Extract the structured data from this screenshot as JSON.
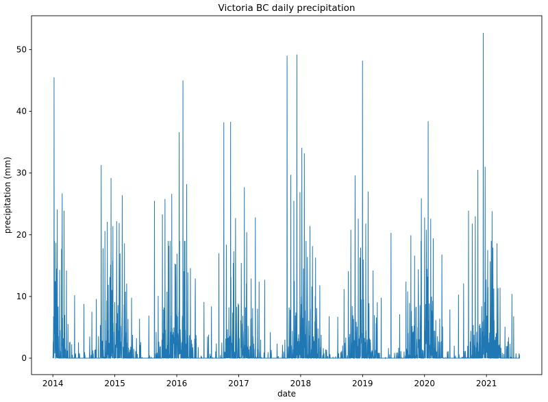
{
  "chart_data": {
    "type": "line",
    "title": "Victoria BC daily precipitation",
    "xlabel": "date",
    "ylabel": "precipitation (mm)",
    "line_color": "#1f77b4",
    "spine_color": "#000000",
    "background": "#ffffff",
    "legend": "none",
    "grid": false,
    "x_ticks": [
      2014,
      2015,
      2016,
      2017,
      2018,
      2019,
      2020,
      2021
    ],
    "y_ticks": [
      0,
      10,
      20,
      30,
      40,
      50
    ],
    "xlim": [
      2013.655,
      2021.894
    ],
    "ylim": [
      -2.66,
      55.48
    ],
    "series_start": 2014.0,
    "series_end": 2021.54,
    "peaks": [
      [
        2014.02,
        45.5
      ],
      [
        2014.05,
        18.7
      ],
      [
        2014.07,
        24.1
      ],
      [
        2014.11,
        14.3
      ],
      [
        2014.15,
        26.7
      ],
      [
        2014.18,
        23.9
      ],
      [
        2014.22,
        14.2
      ],
      [
        2014.35,
        10.2
      ],
      [
        2014.5,
        8.8
      ],
      [
        2014.63,
        7.5
      ],
      [
        2014.7,
        9.6
      ],
      [
        2014.78,
        31.3
      ],
      [
        2014.81,
        17.8
      ],
      [
        2014.84,
        20.6
      ],
      [
        2014.88,
        22.1
      ],
      [
        2014.94,
        29.2
      ],
      [
        2014.97,
        21.4
      ],
      [
        2015.03,
        22.2
      ],
      [
        2015.07,
        21.9
      ],
      [
        2015.12,
        26.4
      ],
      [
        2015.19,
        12.1
      ],
      [
        2015.27,
        9.8
      ],
      [
        2015.4,
        6.4
      ],
      [
        2015.55,
        6.9
      ],
      [
        2015.64,
        25.5
      ],
      [
        2015.7,
        10.1
      ],
      [
        2015.77,
        23.3
      ],
      [
        2015.81,
        25.8
      ],
      [
        2015.87,
        18.2
      ],
      [
        2015.92,
        26.6
      ],
      [
        2015.97,
        15.3
      ],
      [
        2016.04,
        36.6
      ],
      [
        2016.1,
        45.0
      ],
      [
        2016.16,
        28.2
      ],
      [
        2016.22,
        14.6
      ],
      [
        2016.3,
        12.9
      ],
      [
        2016.44,
        9.1
      ],
      [
        2016.56,
        8.4
      ],
      [
        2016.68,
        17.0
      ],
      [
        2016.76,
        38.2
      ],
      [
        2016.8,
        18.4
      ],
      [
        2016.87,
        38.3
      ],
      [
        2016.95,
        22.7
      ],
      [
        2017.09,
        27.7
      ],
      [
        2017.13,
        20.4
      ],
      [
        2017.2,
        12.9
      ],
      [
        2017.27,
        22.8
      ],
      [
        2017.33,
        12.4
      ],
      [
        2017.42,
        12.7
      ],
      [
        2017.51,
        4.2
      ],
      [
        2017.78,
        49.0
      ],
      [
        2017.84,
        29.7
      ],
      [
        2017.89,
        25.5
      ],
      [
        2017.94,
        49.2
      ],
      [
        2017.99,
        26.9
      ],
      [
        2018.02,
        34.1
      ],
      [
        2018.06,
        33.2
      ],
      [
        2018.11,
        16.4
      ],
      [
        2018.15,
        21.4
      ],
      [
        2018.24,
        16.3
      ],
      [
        2018.31,
        11.8
      ],
      [
        2018.46,
        6.8
      ],
      [
        2018.6,
        6.7
      ],
      [
        2018.7,
        11.2
      ],
      [
        2018.77,
        14.1
      ],
      [
        2018.81,
        20.8
      ],
      [
        2018.88,
        29.6
      ],
      [
        2018.93,
        22.6
      ],
      [
        2018.97,
        17.9
      ],
      [
        2019.0,
        48.2
      ],
      [
        2019.05,
        21.8
      ],
      [
        2019.09,
        27.0
      ],
      [
        2019.17,
        14.2
      ],
      [
        2019.3,
        9.8
      ],
      [
        2019.46,
        20.3
      ],
      [
        2019.6,
        7.1
      ],
      [
        2019.7,
        12.4
      ],
      [
        2019.78,
        19.9
      ],
      [
        2019.84,
        16.6
      ],
      [
        2019.9,
        14.4
      ],
      [
        2019.95,
        25.9
      ],
      [
        2020.0,
        22.8
      ],
      [
        2020.03,
        20.8
      ],
      [
        2020.06,
        38.4
      ],
      [
        2020.1,
        22.6
      ],
      [
        2020.14,
        19.4
      ],
      [
        2020.28,
        16.8
      ],
      [
        2020.41,
        7.9
      ],
      [
        2020.55,
        10.3
      ],
      [
        2020.63,
        12.1
      ],
      [
        2020.71,
        23.9
      ],
      [
        2020.77,
        21.8
      ],
      [
        2020.82,
        23.0
      ],
      [
        2020.86,
        30.5
      ],
      [
        2020.95,
        52.7
      ],
      [
        2020.98,
        31.0
      ],
      [
        2021.02,
        17.5
      ],
      [
        2021.06,
        15.7
      ],
      [
        2021.09,
        23.8
      ],
      [
        2021.17,
        18.6
      ],
      [
        2021.22,
        11.4
      ],
      [
        2021.3,
        5.1
      ],
      [
        2021.41,
        10.4
      ],
      [
        2021.44,
        6.8
      ]
    ],
    "background_rain": {
      "seed": 7,
      "rain_prob_dry": 0.08,
      "rain_prob_wet": 0.62,
      "amount_scale_dry_mm": 0.8,
      "amount_scale_wet_mm": 5.2,
      "seasonal_sharpness": 1.4,
      "wettest_day_fraction": 0.0,
      "max_amount_mm": 19
    }
  }
}
